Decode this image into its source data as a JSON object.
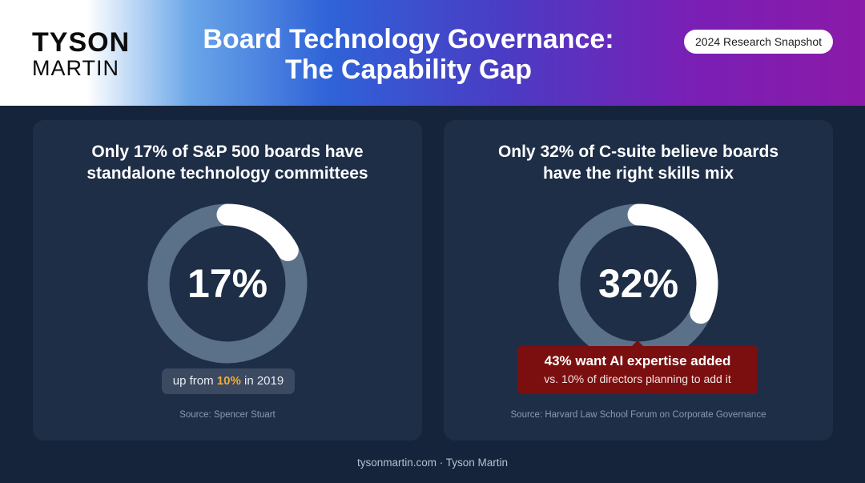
{
  "logo": {
    "top": "TYSON",
    "bottom": "MARTIN"
  },
  "header": {
    "title_line1": "Board Technology Governance:",
    "title_line2": "The Capability Gap",
    "badge": "2024 Research Snapshot"
  },
  "colors": {
    "ring_track": "#5b7089",
    "ring_fill": "#ffffff",
    "highlight": "#f2a93b",
    "callout_bg": "#7b0f0f"
  },
  "cards": [
    {
      "title_line1": "Only 17% of S&P 500 boards have",
      "title_line2": "standalone technology committees",
      "value_label": "17%",
      "note_prefix": "up from ",
      "note_highlight": "10%",
      "note_suffix": " in 2019",
      "source": "Source: Spencer Stuart"
    },
    {
      "title_line1": "Only 32% of C-suite believe boards",
      "title_line2": "have the right skills mix",
      "value_label": "32%",
      "callout_main": "43% want AI expertise added",
      "callout_sub": "vs. 10% of directors planning to add it",
      "source": "Source: Harvard Law School Forum on Corporate Governance"
    }
  ],
  "footer": "tysonmartin.com · Tyson Martin",
  "chart_data": [
    {
      "type": "pie",
      "categories": [
        "S&P 500 boards with standalone technology committees",
        "Other"
      ],
      "values": [
        17,
        83
      ]
    },
    {
      "type": "pie",
      "categories": [
        "C-suite believing boards have the right skills mix",
        "Other"
      ],
      "values": [
        32,
        68
      ]
    }
  ]
}
